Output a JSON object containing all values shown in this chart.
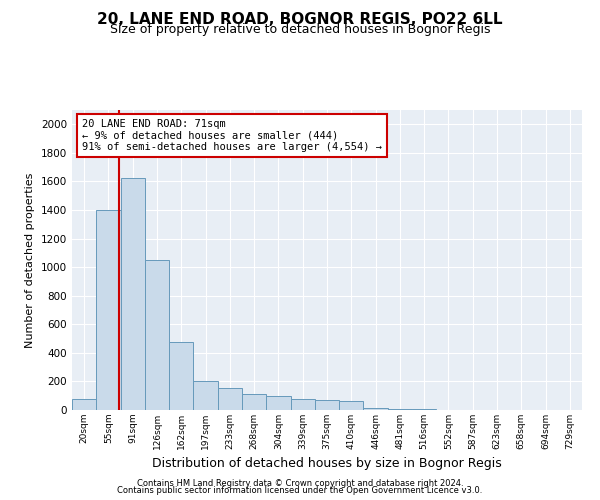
{
  "title": "20, LANE END ROAD, BOGNOR REGIS, PO22 6LL",
  "subtitle": "Size of property relative to detached houses in Bognor Regis",
  "xlabel": "Distribution of detached houses by size in Bognor Regis",
  "ylabel": "Number of detached properties",
  "bin_labels": [
    "20sqm",
    "55sqm",
    "91sqm",
    "126sqm",
    "162sqm",
    "197sqm",
    "233sqm",
    "268sqm",
    "304sqm",
    "339sqm",
    "375sqm",
    "410sqm",
    "446sqm",
    "481sqm",
    "516sqm",
    "552sqm",
    "587sqm",
    "623sqm",
    "658sqm",
    "694sqm",
    "729sqm"
  ],
  "bar_values": [
    75,
    1400,
    1625,
    1050,
    475,
    200,
    155,
    115,
    95,
    80,
    70,
    65,
    15,
    8,
    5,
    0,
    0,
    0,
    0,
    0,
    0
  ],
  "bar_color": "#c9daea",
  "bar_edgecolor": "#6699bb",
  "annotation_text": "20 LANE END ROAD: 71sqm\n← 9% of detached houses are smaller (444)\n91% of semi-detached houses are larger (4,554) →",
  "annotation_box_edgecolor": "#cc0000",
  "vline_color": "#cc0000",
  "ylim": [
    0,
    2100
  ],
  "yticks": [
    0,
    200,
    400,
    600,
    800,
    1000,
    1200,
    1400,
    1600,
    1800,
    2000
  ],
  "background_color": "#e8eef5",
  "grid_color": "#ffffff",
  "footer_line1": "Contains HM Land Registry data © Crown copyright and database right 2024.",
  "footer_line2": "Contains public sector information licensed under the Open Government Licence v3.0.",
  "title_fontsize": 11,
  "subtitle_fontsize": 9,
  "ylabel_fontsize": 8,
  "xlabel_fontsize": 9
}
